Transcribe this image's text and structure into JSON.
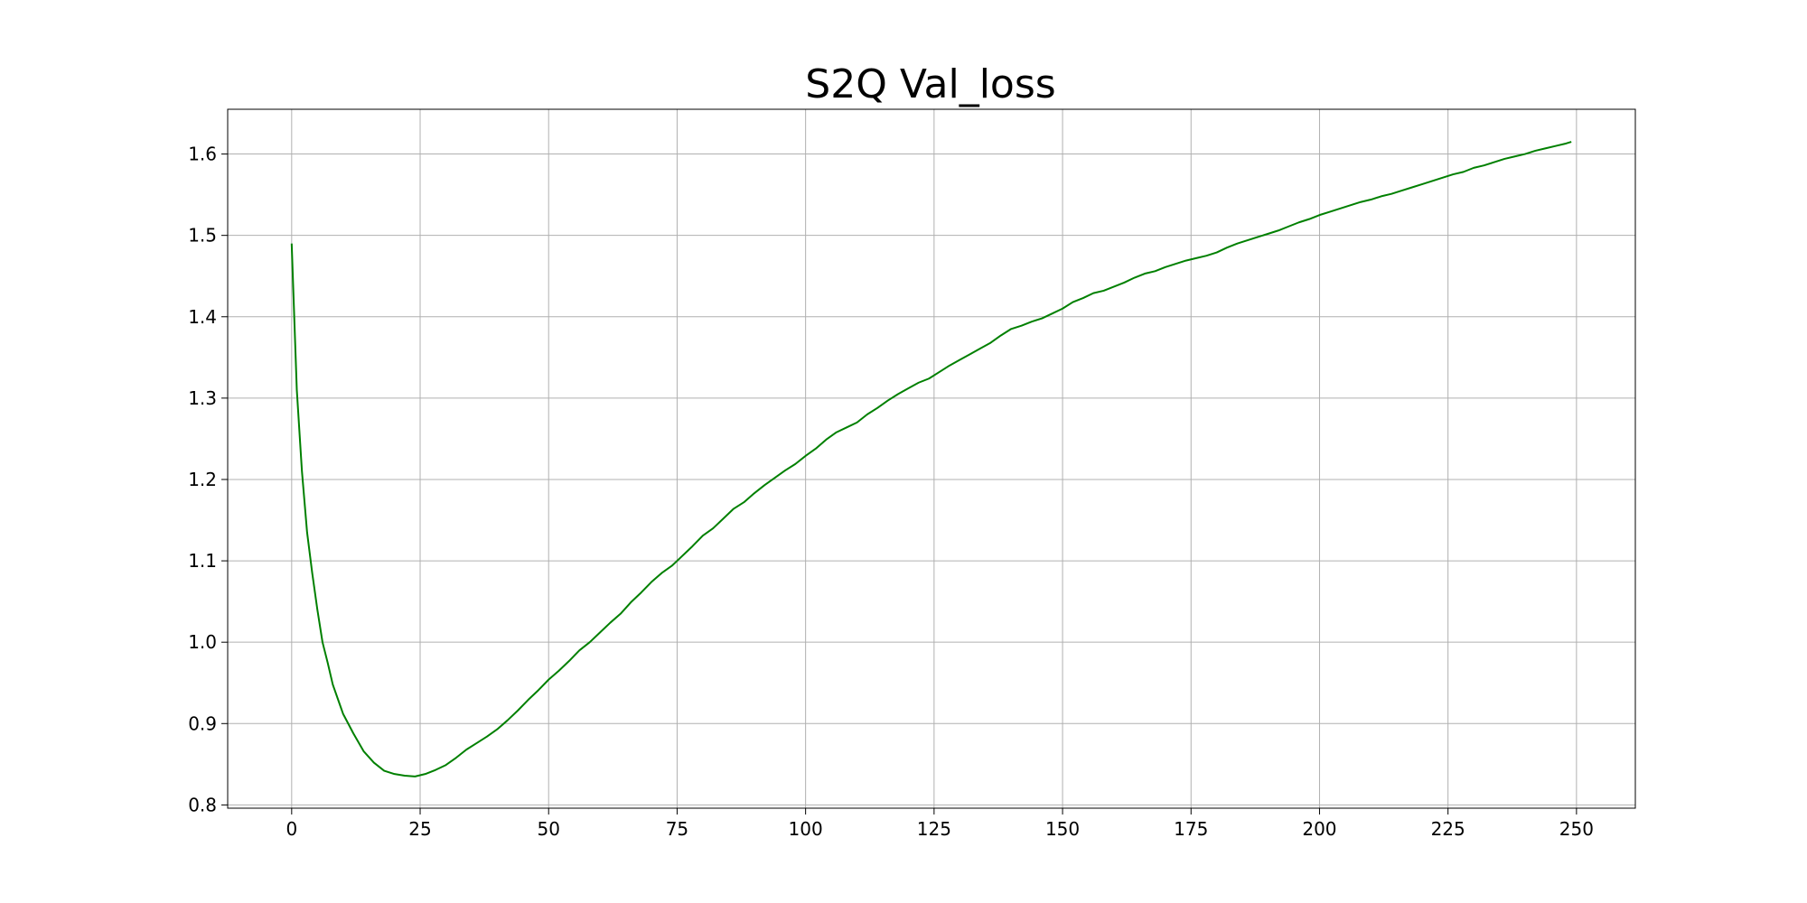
{
  "chart_data": {
    "type": "line",
    "title": "S2Q Val_loss",
    "xlabel": "",
    "ylabel": "",
    "xlim": [
      -12.45,
      261.45
    ],
    "ylim": [
      0.796,
      1.655
    ],
    "xticks": [
      0,
      25,
      50,
      75,
      100,
      125,
      150,
      175,
      200,
      225,
      250
    ],
    "yticks": [
      0.8,
      0.9,
      1.0,
      1.1,
      1.2,
      1.3,
      1.4,
      1.5,
      1.6
    ],
    "grid": true,
    "legend": "none",
    "line_color": "#008000",
    "series": [
      {
        "x": [
          0,
          1,
          2,
          3,
          4,
          5,
          6,
          7,
          8,
          9,
          10,
          12,
          14,
          16,
          18,
          20,
          22,
          24,
          26,
          28,
          30,
          32,
          34,
          36,
          38,
          40,
          42,
          44,
          46,
          48,
          50,
          52,
          54,
          56,
          58,
          60,
          62,
          64,
          66,
          68,
          70,
          72,
          74,
          76,
          78,
          80,
          82,
          84,
          86,
          88,
          90,
          92,
          94,
          96,
          98,
          100,
          102,
          104,
          106,
          108,
          110,
          112,
          114,
          116,
          118,
          120,
          122,
          124,
          126,
          128,
          130,
          132,
          134,
          136,
          138,
          140,
          142,
          144,
          146,
          148,
          150,
          152,
          154,
          156,
          158,
          160,
          162,
          164,
          166,
          168,
          170,
          172,
          174,
          176,
          178,
          180,
          182,
          184,
          186,
          188,
          190,
          192,
          194,
          196,
          198,
          200,
          202,
          204,
          206,
          208,
          210,
          212,
          214,
          216,
          218,
          220,
          222,
          224,
          226,
          228,
          230,
          232,
          234,
          236,
          238,
          240,
          242,
          244,
          246,
          248,
          249
        ],
        "y": [
          1.49,
          1.31,
          1.21,
          1.135,
          1.085,
          1.04,
          1.0,
          0.975,
          0.948,
          0.93,
          0.912,
          0.888,
          0.866,
          0.852,
          0.842,
          0.838,
          0.836,
          0.835,
          0.838,
          0.843,
          0.849,
          0.858,
          0.868,
          0.876,
          0.884,
          0.893,
          0.904,
          0.916,
          0.929,
          0.941,
          0.954,
          0.965,
          0.977,
          0.99,
          1.0,
          1.012,
          1.024,
          1.035,
          1.049,
          1.061,
          1.074,
          1.085,
          1.094,
          1.106,
          1.118,
          1.131,
          1.14,
          1.152,
          1.164,
          1.172,
          1.183,
          1.193,
          1.202,
          1.211,
          1.219,
          1.229,
          1.238,
          1.249,
          1.258,
          1.264,
          1.27,
          1.28,
          1.288,
          1.297,
          1.305,
          1.312,
          1.319,
          1.324,
          1.332,
          1.34,
          1.347,
          1.354,
          1.361,
          1.368,
          1.377,
          1.385,
          1.389,
          1.394,
          1.398,
          1.404,
          1.41,
          1.418,
          1.423,
          1.429,
          1.432,
          1.437,
          1.442,
          1.448,
          1.453,
          1.456,
          1.461,
          1.465,
          1.469,
          1.472,
          1.475,
          1.479,
          1.485,
          1.49,
          1.494,
          1.498,
          1.502,
          1.506,
          1.511,
          1.516,
          1.52,
          1.525,
          1.529,
          1.533,
          1.537,
          1.541,
          1.544,
          1.548,
          1.551,
          1.555,
          1.559,
          1.563,
          1.567,
          1.571,
          1.575,
          1.578,
          1.583,
          1.586,
          1.59,
          1.594,
          1.597,
          1.6,
          1.604,
          1.607,
          1.61,
          1.613,
          1.615
        ]
      }
    ]
  }
}
